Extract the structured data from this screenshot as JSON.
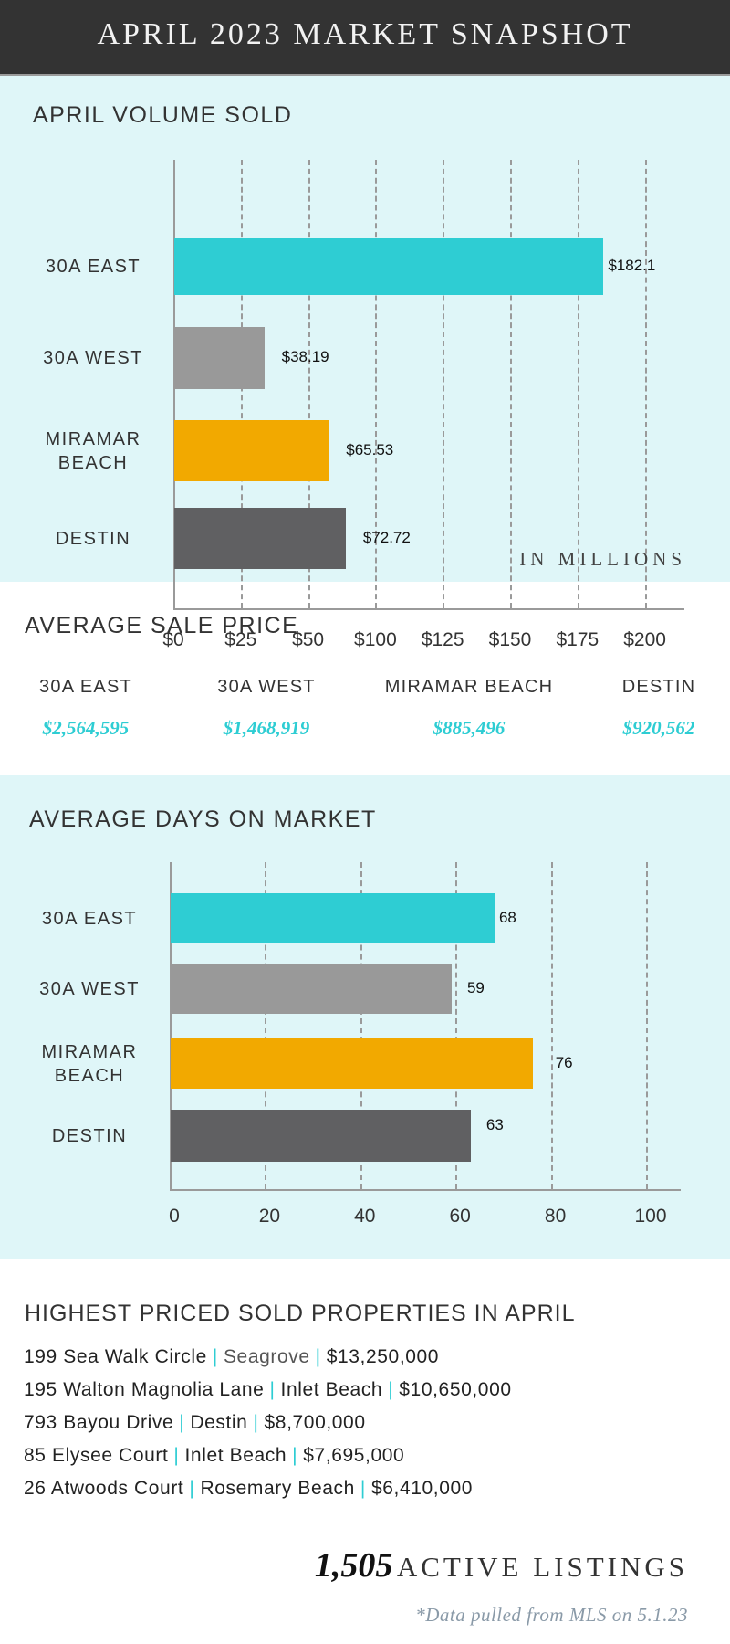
{
  "header": {
    "title": "APRIL 2023 MARKET SNAPSHOT"
  },
  "colors": {
    "header_bg": "#333333",
    "band_bg": "#DFF6F8",
    "teal": "#2ECDD3",
    "gray": "#999999",
    "orange": "#F2A900",
    "dark": "#606062"
  },
  "chart_data": [
    {
      "type": "bar",
      "orientation": "horizontal",
      "title": "APRIL VOLUME SOLD",
      "categories": [
        "30A EAST",
        "30A WEST",
        "MIRAMAR BEACH",
        "DESTIN"
      ],
      "values": [
        182.1,
        38.19,
        65.53,
        72.72
      ],
      "value_labels": [
        "$182.1",
        "$38.19",
        "$65.53",
        "$72.72"
      ],
      "bar_colors": [
        "#2ECDD3",
        "#999999",
        "#F2A900",
        "#606062"
      ],
      "tick_labels": [
        "$0",
        "$25",
        "$50",
        "$100",
        "$125",
        "$150",
        "$175",
        "$200"
      ],
      "xlim": [
        0,
        200
      ],
      "xlabel": "IN MILLIONS",
      "grid": true
    },
    {
      "type": "bar",
      "orientation": "horizontal",
      "title": "AVERAGE DAYS ON MARKET",
      "categories": [
        "30A EAST",
        "30A WEST",
        "MIRAMAR BEACH",
        "DESTIN"
      ],
      "values": [
        68,
        59,
        76,
        63
      ],
      "value_labels": [
        "68",
        "59",
        "76",
        "63"
      ],
      "bar_colors": [
        "#2ECDD3",
        "#999999",
        "#F2A900",
        "#606062"
      ],
      "tick_labels": [
        "0",
        "20",
        "40",
        "60",
        "80",
        "100"
      ],
      "ticks": [
        0,
        20,
        40,
        60,
        80,
        100
      ],
      "xlim": [
        0,
        100
      ],
      "grid": true
    }
  ],
  "avg_price": {
    "title": "AVERAGE SALE PRICE",
    "items": [
      {
        "label": "30A EAST",
        "value": "$2,564,595"
      },
      {
        "label": "30A WEST",
        "value": "$1,468,919"
      },
      {
        "label": "MIRAMAR BEACH",
        "value": "$885,496"
      },
      {
        "label": "DESTIN",
        "value": "$920,562"
      }
    ]
  },
  "properties": {
    "title": "HIGHEST PRICED SOLD PROPERTIES IN APRIL",
    "separator": "|",
    "items": [
      {
        "address": "199 Sea Walk Circle",
        "location": "Seagrove",
        "price": "$13,250,000"
      },
      {
        "address": "195 Walton Magnolia Lane",
        "location": "Inlet Beach",
        "price": "$10,650,000"
      },
      {
        "address": "793 Bayou Drive",
        "location": "Destin",
        "price": "$8,700,000"
      },
      {
        "address": "85 Elysee Court",
        "location": "Inlet Beach",
        "price": "$7,695,000"
      },
      {
        "address": "26 Atwoods Court",
        "location": "Rosemary Beach",
        "price": "$6,410,000"
      }
    ]
  },
  "active": {
    "count": "1,505",
    "label": "ACTIVE LISTINGS"
  },
  "footnote": "*Data pulled from MLS on 5.1.23"
}
